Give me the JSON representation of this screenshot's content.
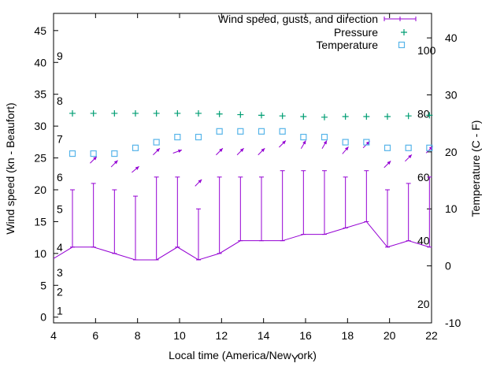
{
  "chart_data": {
    "type": "line",
    "title": "",
    "xlabel": "Local time (America/New_York)",
    "ylabel": "Wind speed (kn - Beaufort)",
    "y2label": "Temperature (C - F)",
    "xlim": [
      4,
      22
    ],
    "ylim": [
      -0.9,
      47.7
    ],
    "y2lim": [
      -10,
      44.3
    ],
    "x_ticks": [
      4,
      6,
      8,
      10,
      12,
      14,
      16,
      18,
      20,
      22
    ],
    "y_ticks": [
      0,
      5,
      10,
      15,
      20,
      25,
      30,
      35,
      40,
      45
    ],
    "y2_ticks": [
      -10,
      0,
      10,
      20,
      30,
      40
    ],
    "grid": false,
    "legend_position": "top-right",
    "legend": [
      "Wind speed, gusts, and direction",
      "Pressure",
      "Temperature"
    ],
    "beaufort_labels": [
      {
        "label": "1",
        "kn": 1
      },
      {
        "label": "2",
        "kn": 4
      },
      {
        "label": "3",
        "kn": 7
      },
      {
        "label": "4",
        "kn": 11
      },
      {
        "label": "5",
        "kn": 17
      },
      {
        "label": "6",
        "kn": 22
      },
      {
        "label": "7",
        "kn": 28
      },
      {
        "label": "8",
        "kn": 34
      },
      {
        "label": "9",
        "kn": 41
      }
    ],
    "fahrenheit_labels": [
      {
        "label": "20",
        "f": 20
      },
      {
        "label": "40",
        "f": 40
      },
      {
        "label": "60",
        "f": 60
      },
      {
        "label": "80",
        "f": 80
      },
      {
        "label": "100",
        "f": 100
      }
    ],
    "x": [
      4.9,
      5.9,
      6.9,
      7.9,
      8.9,
      9.9,
      10.9,
      11.9,
      12.9,
      13.9,
      14.9,
      15.9,
      16.9,
      17.9,
      18.9,
      19.9,
      20.9,
      21.9
    ],
    "series": [
      {
        "name": "Wind speed",
        "start": [
          3.9,
          9
        ],
        "values": [
          11,
          11,
          10,
          9,
          9,
          11,
          9,
          10,
          12,
          12,
          12,
          13,
          13,
          14,
          15,
          11,
          12,
          11
        ],
        "gusts": [
          20,
          21,
          20,
          19,
          22,
          22,
          17,
          22,
          22,
          22,
          23,
          23,
          23,
          22,
          23,
          20,
          21,
          22
        ]
      },
      {
        "name": "Direction",
        "arrow_y": [
          null,
          24.7,
          24.1,
          23.2,
          26,
          26,
          21.1,
          26,
          26,
          26,
          27.2,
          27.1,
          27.1,
          26.2,
          27.1,
          24,
          25,
          26.3
        ],
        "arrow_angle_deg": [
          null,
          45,
          45,
          40,
          45,
          20,
          45,
          45,
          45,
          45,
          45,
          60,
          60,
          50,
          45,
          45,
          45,
          45
        ]
      },
      {
        "name": "Pressure",
        "axis": "y",
        "values": [
          32,
          32,
          32,
          32,
          32,
          32,
          32,
          31.9,
          31.8,
          31.7,
          31.6,
          31.5,
          31.4,
          31.5,
          31.5,
          31.5,
          31.6,
          31.7
        ]
      },
      {
        "name": "Temperature",
        "axis": "y2",
        "values": [
          19.7,
          19.7,
          19.7,
          20.7,
          21.7,
          22.6,
          22.6,
          23.6,
          23.6,
          23.6,
          23.6,
          22.6,
          22.6,
          21.7,
          21.7,
          20.7,
          20.7,
          20.7
        ]
      }
    ],
    "colors": {
      "wind": "#9400d3",
      "pressure": "#009e73",
      "temperature": "#56b4e9"
    }
  }
}
